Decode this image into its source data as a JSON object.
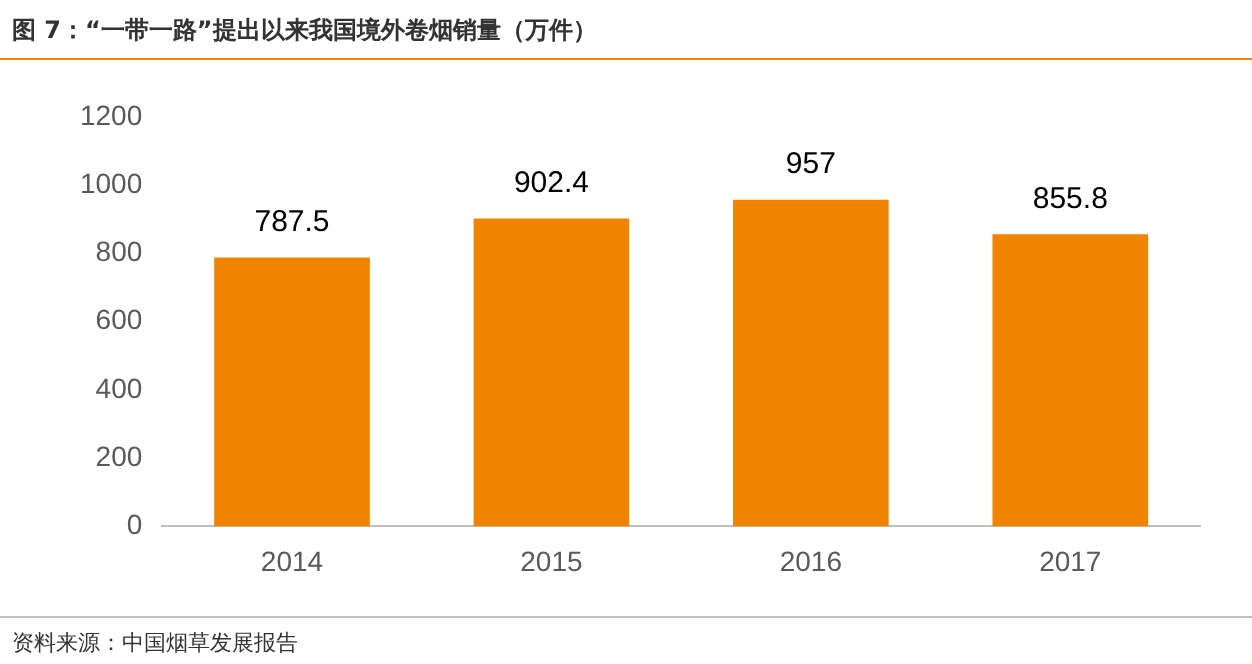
{
  "chart_data": {
    "type": "bar",
    "title": "图 7：“一带一路”提出以来我国境外卷烟销量（万件）",
    "categories": [
      "2014",
      "2015",
      "2016",
      "2017"
    ],
    "values": [
      787.5,
      902.4,
      957,
      855.8
    ],
    "color": "#f08300",
    "ylim": [
      0,
      1200
    ],
    "yticks": [
      0,
      200,
      400,
      600,
      800,
      1000,
      1200
    ],
    "grid": false,
    "legend": false,
    "data_labels": true,
    "annotations": [
      "资料来源：中国烟草发展报告"
    ]
  }
}
